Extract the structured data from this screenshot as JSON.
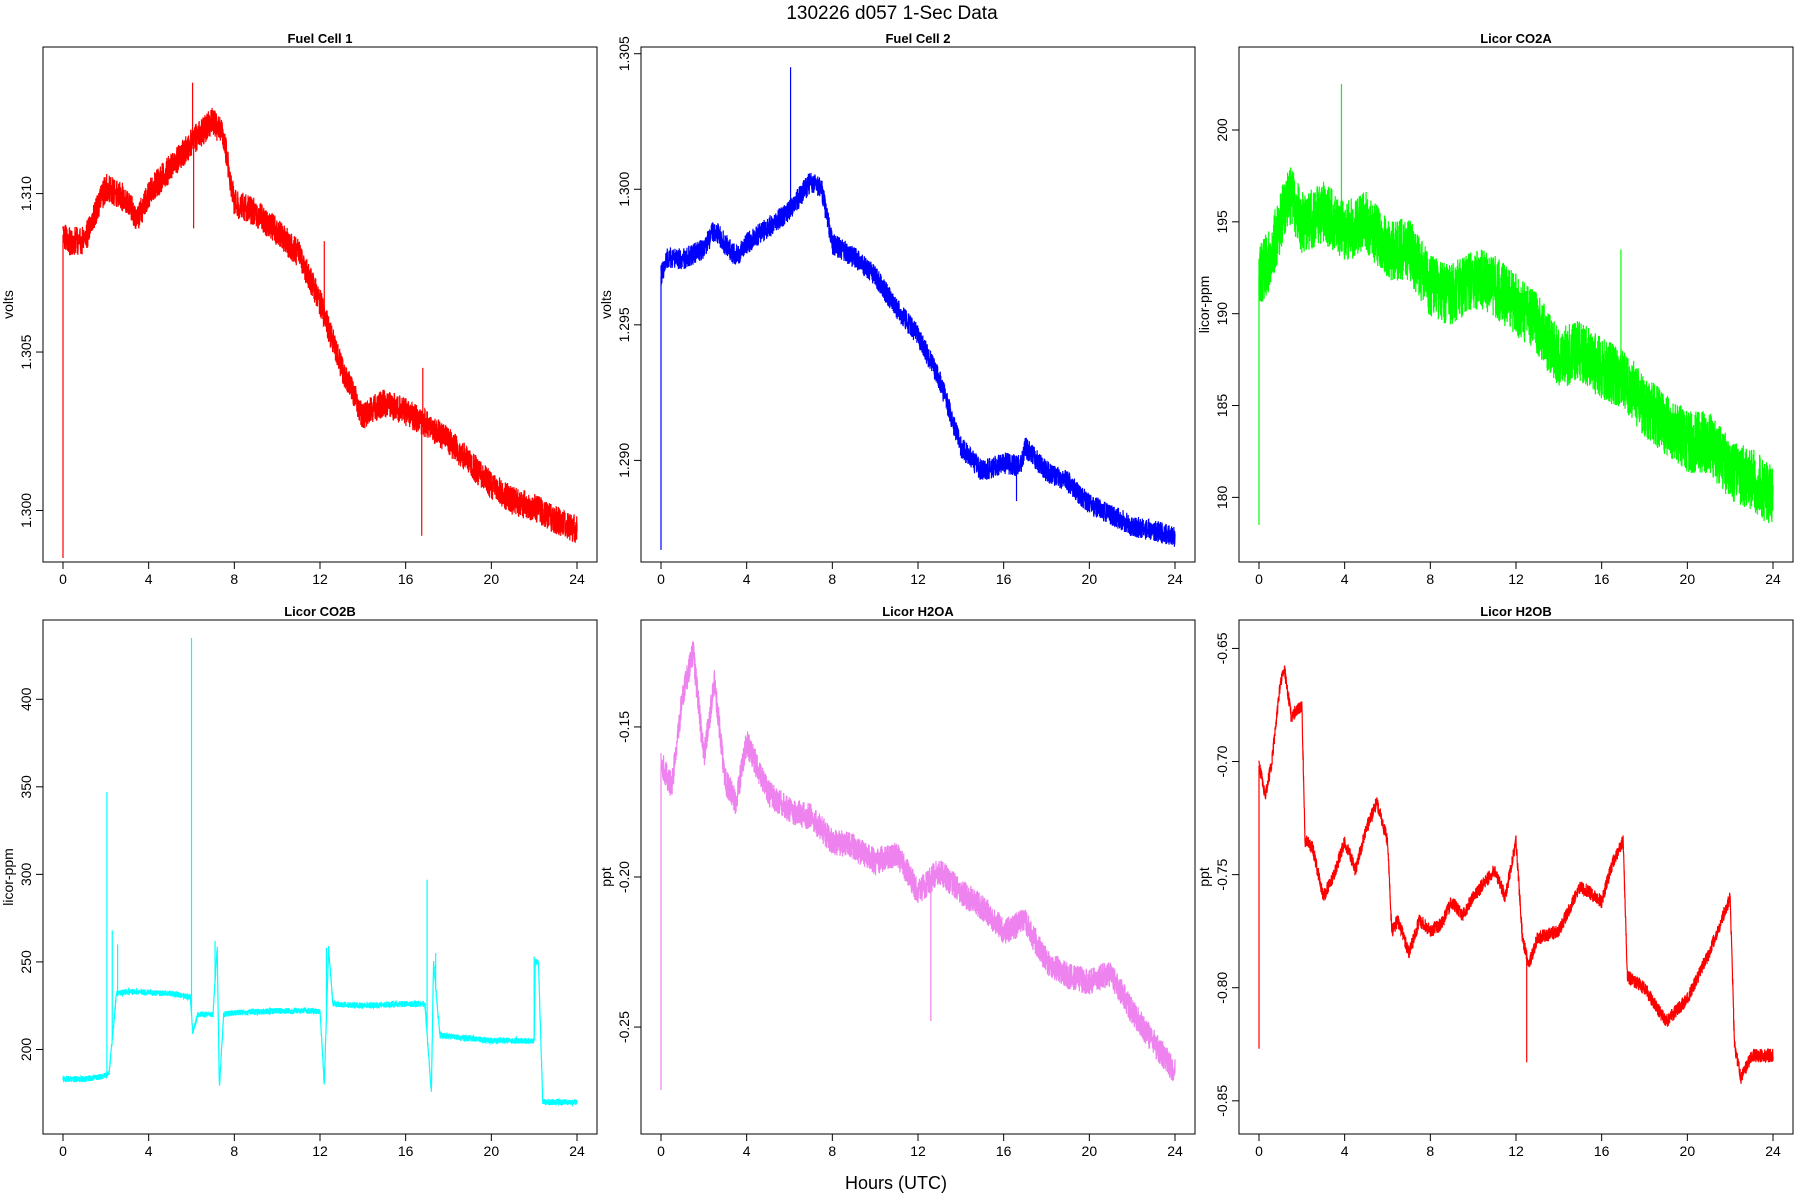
{
  "figure": {
    "title": "130226   d057   1-Sec Data",
    "xlabel": "Hours (UTC)"
  },
  "chart_data": [
    {
      "type": "line",
      "title": "Fuel Cell 1",
      "ylabel": "volts",
      "color": "#ff0000",
      "x_ticks": [
        0,
        4,
        8,
        12,
        16,
        20,
        24
      ],
      "y_ticks": [
        1.3,
        1.305,
        1.31
      ],
      "y_tick_labels": [
        "1.300",
        "1.305",
        "1.310"
      ],
      "xlim": [
        0,
        24
      ],
      "ylim": [
        1.2985,
        1.3145
      ],
      "noise": 0.0009,
      "spikes": [
        [
          0.0,
          1.2985
        ],
        [
          6.05,
          1.3135
        ],
        [
          6.1,
          1.3089
        ],
        [
          16.8,
          1.3045
        ],
        [
          16.75,
          1.2992
        ],
        [
          12.2,
          1.3085
        ]
      ],
      "x": [
        0,
        0.3,
        1,
        2,
        3,
        3.5,
        4,
        5,
        6,
        7,
        7.5,
        8,
        9,
        10,
        11,
        12,
        13,
        14,
        15,
        16,
        17,
        18,
        19,
        20,
        21,
        22,
        23,
        24
      ],
      "y": [
        1.3087,
        1.3085,
        1.3085,
        1.3102,
        1.3098,
        1.3092,
        1.31,
        1.3108,
        1.3116,
        1.3123,
        1.3118,
        1.3097,
        1.3094,
        1.3088,
        1.3081,
        1.3066,
        1.3045,
        1.303,
        1.3034,
        1.3031,
        1.3027,
        1.3022,
        1.3015,
        1.3008,
        1.3003,
        1.3001,
        1.2997,
        1.2994
      ]
    },
    {
      "type": "line",
      "title": "Fuel Cell 2",
      "ylabel": "volts",
      "color": "#0000ff",
      "x_ticks": [
        0,
        4,
        8,
        12,
        16,
        20,
        24
      ],
      "y_ticks": [
        1.29,
        1.295,
        1.3,
        1.305
      ],
      "y_tick_labels": [
        "1.290",
        "1.295",
        "1.300",
        "1.305"
      ],
      "xlim": [
        0,
        24
      ],
      "ylim": [
        1.2864,
        1.3051
      ],
      "noise": 0.0008,
      "spikes": [
        [
          0.0,
          1.2867
        ],
        [
          6.05,
          1.3045
        ],
        [
          16.6,
          1.2885
        ]
      ],
      "x": [
        0,
        0.3,
        1,
        2,
        2.5,
        3,
        3.5,
        4,
        5,
        6,
        7,
        7.5,
        8,
        9,
        10,
        11,
        12,
        13,
        14,
        15,
        16,
        16.8,
        17,
        18,
        19,
        20,
        21,
        22,
        23,
        24
      ],
      "y": [
        1.2968,
        1.2975,
        1.2974,
        1.2978,
        1.2985,
        1.298,
        1.2975,
        1.298,
        1.2986,
        1.2992,
        1.3003,
        1.3,
        1.298,
        1.2975,
        1.2968,
        1.2956,
        1.2946,
        1.293,
        1.2905,
        1.2896,
        1.2899,
        1.2898,
        1.2905,
        1.2896,
        1.2892,
        1.2884,
        1.288,
        1.2876,
        1.2874,
        1.2872
      ]
    },
    {
      "type": "line",
      "title": "Licor CO2A",
      "ylabel": "licor-ppm",
      "color": "#00ff00",
      "x_ticks": [
        0,
        4,
        8,
        12,
        16,
        20,
        24
      ],
      "y_ticks": [
        180,
        185,
        190,
        195,
        200
      ],
      "y_tick_labels": [
        "180",
        "185",
        "190",
        "195",
        "200"
      ],
      "xlim": [
        0,
        24
      ],
      "ylim": [
        176.7,
        204.3
      ],
      "noise": 3.4,
      "spikes": [
        [
          0.0,
          178.5
        ],
        [
          3.85,
          202.5
        ],
        [
          16.9,
          193.5
        ]
      ],
      "x": [
        0,
        0.5,
        1,
        1.5,
        2,
        3,
        4,
        5,
        6,
        7,
        8,
        9,
        10,
        11,
        12,
        13,
        14,
        15,
        16,
        17,
        18,
        19,
        20,
        21,
        22,
        23,
        24
      ],
      "y": [
        192.0,
        193.0,
        195.0,
        196.5,
        195.0,
        195.5,
        194.5,
        195.0,
        193.5,
        193.5,
        191.5,
        191.0,
        192.0,
        191.5,
        190.5,
        189.5,
        187.5,
        188.0,
        187.0,
        186.5,
        185.0,
        184.0,
        183.0,
        183.0,
        181.5,
        181.0,
        180.0
      ]
    },
    {
      "type": "line",
      "title": "Licor CO2B",
      "ylabel": "licor-ppm",
      "color": "#00ffff",
      "x_ticks": [
        0,
        4,
        8,
        12,
        16,
        20,
        24
      ],
      "y_ticks": [
        200,
        250,
        300,
        350,
        400
      ],
      "y_tick_labels": [
        "200",
        "250",
        "300",
        "350",
        "400"
      ],
      "xlim": [
        0,
        24
      ],
      "ylim": [
        154,
        443
      ],
      "noise": 3.5,
      "spikes": [
        [
          2.05,
          347
        ],
        [
          2.3,
          268
        ],
        [
          2.55,
          260
        ],
        [
          6.0,
          435
        ],
        [
          7.1,
          262
        ],
        [
          12.3,
          258
        ],
        [
          17.0,
          297
        ],
        [
          17.4,
          255
        ],
        [
          22.0,
          253
        ]
      ],
      "x": [
        0,
        1,
        2,
        2.15,
        2.5,
        3,
        5,
        5.95,
        6.05,
        6.3,
        7.0,
        7.2,
        7.3,
        7.5,
        8,
        10,
        12,
        12.2,
        12.4,
        12.6,
        14,
        16,
        16.9,
        17.2,
        17.3,
        17.6,
        20,
        22,
        22.05,
        22.2,
        22.4,
        24
      ],
      "y": [
        183,
        183,
        185,
        186,
        232,
        233,
        232,
        230,
        210,
        220,
        220,
        258,
        178,
        220,
        221,
        222,
        222,
        180,
        258,
        226,
        225,
        226,
        226,
        175,
        250,
        208,
        205,
        205,
        250,
        250,
        170,
        170
      ]
    },
    {
      "type": "line",
      "title": "Licor H2OA",
      "ylabel": "ppt",
      "color": "#ee82ee",
      "x_ticks": [
        0,
        4,
        8,
        12,
        16,
        20,
        24
      ],
      "y_ticks": [
        -0.25,
        -0.2,
        -0.15
      ],
      "y_tick_labels": [
        "-0.25",
        "-0.20",
        "-0.15"
      ],
      "xlim": [
        0,
        24
      ],
      "ylim": [
        -0.2843,
        -0.1157
      ],
      "noise": 0.009,
      "spikes": [
        [
          0.0,
          -0.271
        ],
        [
          12.6,
          -0.248
        ]
      ],
      "x": [
        0,
        0.5,
        1.0,
        1.5,
        2.0,
        2.5,
        3.0,
        3.5,
        4.0,
        5.0,
        6.0,
        7.0,
        8.0,
        9.0,
        10.0,
        11.0,
        12.0,
        13.0,
        14.0,
        15.0,
        16.0,
        17.0,
        18.0,
        19.0,
        20.0,
        21.0,
        22.0,
        23.0,
        24.0
      ],
      "y": [
        -0.162,
        -0.17,
        -0.14,
        -0.125,
        -0.16,
        -0.135,
        -0.168,
        -0.175,
        -0.155,
        -0.172,
        -0.178,
        -0.18,
        -0.188,
        -0.19,
        -0.195,
        -0.192,
        -0.205,
        -0.198,
        -0.205,
        -0.21,
        -0.218,
        -0.215,
        -0.228,
        -0.233,
        -0.235,
        -0.232,
        -0.245,
        -0.255,
        -0.265
      ]
    },
    {
      "type": "line",
      "title": "Licor H2OB",
      "ylabel": "ppt",
      "color": "#ff0000",
      "x_ticks": [
        0,
        4,
        8,
        12,
        16,
        20,
        24
      ],
      "y_ticks": [
        -0.85,
        -0.8,
        -0.75,
        -0.7,
        -0.65
      ],
      "y_tick_labels": [
        "-0.85",
        "-0.80",
        "-0.75",
        "-0.70",
        "-0.65"
      ],
      "xlim": [
        0,
        24
      ],
      "ylim": [
        -0.8629,
        -0.6392
      ],
      "noise": 0.006,
      "spikes": [
        [
          0.0,
          -0.827
        ],
        [
          12.5,
          -0.833
        ]
      ],
      "x": [
        0,
        0.3,
        0.6,
        1.0,
        1.2,
        1.5,
        2.0,
        2.15,
        2.5,
        3.0,
        3.5,
        4.0,
        4.5,
        5.0,
        5.5,
        6.0,
        6.2,
        6.5,
        7.0,
        7.5,
        8.0,
        8.5,
        9.0,
        9.5,
        10.0,
        11.0,
        11.5,
        12.0,
        12.3,
        12.6,
        13.0,
        14.0,
        15.0,
        16.0,
        16.5,
        17.0,
        17.2,
        18.0,
        19.0,
        20.0,
        21.0,
        22.0,
        22.2,
        22.5,
        23.0,
        24.0
      ],
      "y": [
        -0.702,
        -0.715,
        -0.7,
        -0.665,
        -0.66,
        -0.68,
        -0.675,
        -0.735,
        -0.738,
        -0.76,
        -0.75,
        -0.735,
        -0.748,
        -0.73,
        -0.718,
        -0.735,
        -0.775,
        -0.77,
        -0.785,
        -0.77,
        -0.775,
        -0.772,
        -0.762,
        -0.768,
        -0.76,
        -0.748,
        -0.76,
        -0.735,
        -0.778,
        -0.79,
        -0.778,
        -0.775,
        -0.755,
        -0.762,
        -0.745,
        -0.735,
        -0.795,
        -0.8,
        -0.815,
        -0.805,
        -0.785,
        -0.76,
        -0.825,
        -0.84,
        -0.83,
        -0.83
      ]
    }
  ]
}
